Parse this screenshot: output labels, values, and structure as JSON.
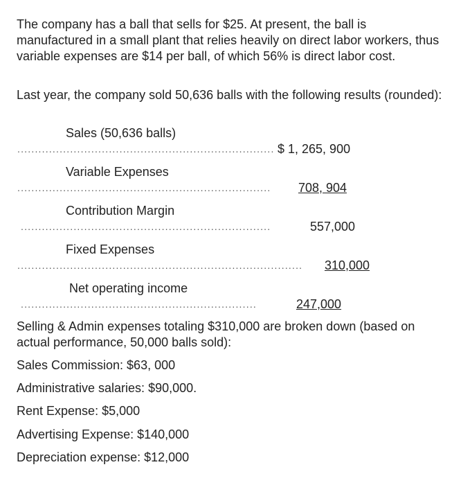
{
  "intro": "The company has a ball that sells for $25. At present, the ball is manufactured in a small plant that relies heavily on direct labor workers, thus variable expenses are $14 per ball, of which 56% is direct labor cost.",
  "last_year": "Last year, the company sold 50,636 balls with the following results (rounded):",
  "statement": [
    {
      "label": "Sales (50,636 balls)",
      "value": "$ 1, 265, 900",
      "underlined": false
    },
    {
      "label": "Variable Expenses",
      "value": "708, 904",
      "underlined": true
    },
    {
      "label": "Contribution Margin",
      "value": "557,000",
      "underlined": false
    },
    {
      "label": "Fixed Expenses",
      "value": "310,000",
      "underlined": true
    },
    {
      "label": "Net operating income",
      "value": "247,000",
      "underlined": true
    }
  ],
  "breakdown_intro": "Selling & Admin expenses totaling $310,000 are broken down (based on actual performance, 50,000 balls sold):",
  "breakdown": [
    "Sales Commission: $63, 000",
    "Administrative salaries: $90,000.",
    "Rent Expense: $5,000",
    "Advertising Expense: $140,000",
    "Depreciation expense: $12,000"
  ]
}
